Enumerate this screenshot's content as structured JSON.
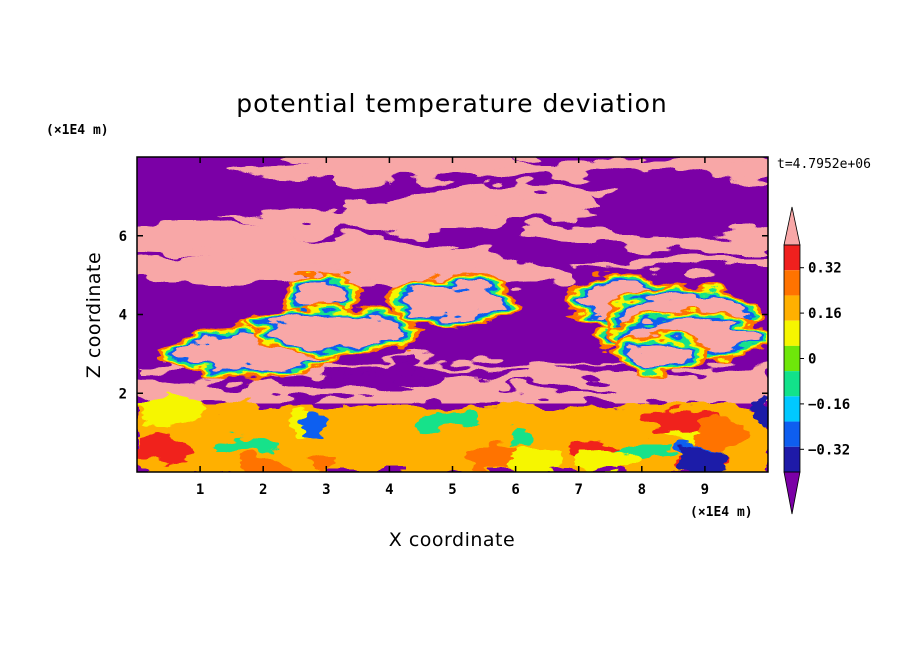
{
  "chart_data": {
    "type": "heatmap",
    "title": "potential temperature deviation",
    "xlabel": "X coordinate",
    "ylabel": "Z coordinate",
    "x_unit": "(×1E4 m)",
    "y_unit": "(×1E4 m)",
    "time_label": "t=4.7952e+06",
    "xlim": [
      0,
      10
    ],
    "ylim": [
      0,
      8
    ],
    "x_ticks": [
      1,
      2,
      3,
      4,
      5,
      6,
      7,
      8,
      9
    ],
    "y_ticks": [
      2,
      4,
      6
    ],
    "colorbar": {
      "levels": [
        -0.4,
        -0.32,
        -0.24,
        -0.16,
        -0.08,
        0,
        0.08,
        0.16,
        0.24,
        0.32,
        0.4
      ],
      "tick_labels": [
        "0.32",
        "0.16",
        "0",
        "−0.16",
        "−0.32"
      ],
      "tick_values": [
        0.32,
        0.16,
        0,
        -0.16,
        -0.32
      ],
      "colors": [
        "#7b00a6",
        "#1e1aa8",
        "#0e5ef0",
        "#00c8ff",
        "#12e28a",
        "#6ee70a",
        "#f6f600",
        "#ffb000",
        "#ff7300",
        "#f0201e",
        "#f8a7a7"
      ],
      "extend": "both"
    },
    "field_description_layers": [
      {
        "z_range": [
          5.0,
          8.0
        ],
        "dominant_values": [
          0.45,
          -0.45
        ]
      },
      {
        "z_range": [
          2.8,
          5.0
        ],
        "dominant_values": [
          -0.45,
          0.45,
          -0.1,
          0.05,
          0.2,
          -0.3
        ]
      },
      {
        "z_range": [
          1.7,
          2.8
        ],
        "dominant_values": [
          0.45,
          -0.45
        ]
      },
      {
        "z_range": [
          0.0,
          1.7
        ],
        "dominant_values": [
          0.0,
          0.1,
          0.2,
          -0.1,
          -0.25,
          -0.35
        ]
      }
    ]
  }
}
